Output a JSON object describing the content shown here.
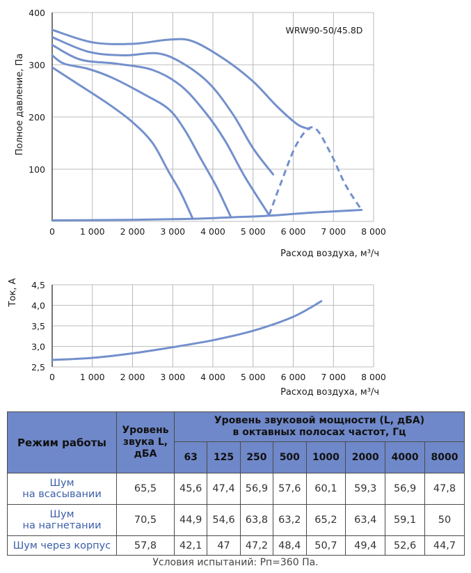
{
  "chart_data": [
    {
      "type": "line",
      "title": "WRW90-50/45.8D",
      "xlabel": "Расход воздуха, м³/ч",
      "ylabel": "Полное давление, Па",
      "xlim": [
        0,
        8000
      ],
      "ylim": [
        0,
        400
      ],
      "x_ticks": [
        "0",
        "1 000",
        "2 000",
        "3 000",
        "4 000",
        "5 000",
        "6 000",
        "7 000",
        "8 000"
      ],
      "y_ticks": [
        "100",
        "200",
        "300",
        "400"
      ],
      "grid": true,
      "series": [
        {
          "style": "solid",
          "points": [
            [
              0,
              295
            ],
            [
              600,
              265
            ],
            [
              1400,
              225
            ],
            [
              2000,
              190
            ],
            [
              2500,
              150
            ],
            [
              2900,
              95
            ],
            [
              3200,
              55
            ],
            [
              3500,
              5
            ]
          ]
        },
        {
          "style": "solid",
          "points": [
            [
              0,
              318
            ],
            [
              300,
              302
            ],
            [
              900,
              292
            ],
            [
              1500,
              275
            ],
            [
              2300,
              243
            ],
            [
              2900,
              215
            ],
            [
              3300,
              175
            ],
            [
              3700,
              120
            ],
            [
              4100,
              65
            ],
            [
              4450,
              8
            ]
          ]
        },
        {
          "style": "solid",
          "points": [
            [
              0,
              338
            ],
            [
              700,
              310
            ],
            [
              1600,
              302
            ],
            [
              2500,
              290
            ],
            [
              3200,
              260
            ],
            [
              3800,
              210
            ],
            [
              4300,
              155
            ],
            [
              4800,
              85
            ],
            [
              5400,
              12
            ]
          ]
        },
        {
          "style": "solid",
          "points": [
            [
              0,
              353
            ],
            [
              900,
              325
            ],
            [
              1800,
              318
            ],
            [
              2600,
              322
            ],
            [
              3200,
              305
            ],
            [
              3900,
              265
            ],
            [
              4500,
              205
            ],
            [
              5000,
              140
            ],
            [
              5500,
              90
            ]
          ]
        },
        {
          "style": "solid",
          "points": [
            [
              0,
              367
            ],
            [
              1000,
              343
            ],
            [
              2000,
              340
            ],
            [
              2900,
              348
            ],
            [
              3500,
              345
            ],
            [
              4300,
              310
            ],
            [
              5000,
              268
            ],
            [
              5600,
              220
            ],
            [
              6100,
              186
            ],
            [
              6400,
              177
            ]
          ]
        },
        {
          "style": "dashed",
          "points": [
            [
              5400,
              12
            ],
            [
              5700,
              75
            ],
            [
              6100,
              150
            ],
            [
              6500,
              180
            ],
            [
              6900,
              135
            ],
            [
              7300,
              70
            ],
            [
              7700,
              22
            ]
          ]
        },
        {
          "style": "solid",
          "points": [
            [
              0,
              2
            ],
            [
              2000,
              3
            ],
            [
              3500,
              5
            ],
            [
              4500,
              8
            ],
            [
              5400,
              11
            ],
            [
              6500,
              17
            ],
            [
              7700,
              22
            ]
          ]
        }
      ]
    },
    {
      "type": "line",
      "xlabel": "Расход воздуха, м³/ч",
      "ylabel": "Ток, А",
      "xlim": [
        0,
        8000
      ],
      "ylim": [
        2.5,
        4.5
      ],
      "x_ticks": [
        "0",
        "1 000",
        "2 000",
        "3 000",
        "4 000",
        "5 000",
        "6 000",
        "7 000",
        "8 000"
      ],
      "y_ticks": [
        "2,5",
        "3,0",
        "3,5",
        "4,0",
        "4,5"
      ],
      "grid": true,
      "series": [
        {
          "style": "solid",
          "points": [
            [
              0,
              2.67
            ],
            [
              1000,
              2.72
            ],
            [
              2000,
              2.83
            ],
            [
              3000,
              2.98
            ],
            [
              4000,
              3.15
            ],
            [
              5000,
              3.38
            ],
            [
              6000,
              3.72
            ],
            [
              6700,
              4.1
            ]
          ]
        }
      ]
    }
  ],
  "table": {
    "mode_header": "Режим работы",
    "level_header": [
      "Уровень",
      "звука L,",
      "дБА"
    ],
    "power_header": [
      "Уровень звуковой мощности (L, дБА)",
      "в октавных полосах частот, Гц"
    ],
    "bands": [
      "63",
      "125",
      "250",
      "500",
      "1000",
      "2000",
      "4000",
      "8000"
    ],
    "rows": [
      {
        "mode": [
          "Шум",
          "на всасывании"
        ],
        "level": "65,5",
        "values": [
          "45,6",
          "47,4",
          "56,9",
          "57,6",
          "60,1",
          "59,3",
          "56,9",
          "47,8"
        ]
      },
      {
        "mode": [
          "Шум",
          "на нагнетании"
        ],
        "level": "70,5",
        "values": [
          "44,9",
          "54,6",
          "63,8",
          "63,2",
          "65,2",
          "63,4",
          "59,1",
          "50"
        ]
      },
      {
        "mode": [
          "Шум через корпус"
        ],
        "level": "57,8",
        "values": [
          "42,1",
          "47",
          "47,2",
          "48,4",
          "50,7",
          "49,4",
          "52,6",
          "44,7"
        ]
      }
    ]
  },
  "footer": {
    "conditions": "Условия испытаний: Рп=360 Па."
  },
  "colors": {
    "curve": "#7390cc",
    "grid": "#a8a8a8",
    "axis": "#333333",
    "header_bg": "#6f88c9",
    "mode_text": "#3b5ea8"
  }
}
